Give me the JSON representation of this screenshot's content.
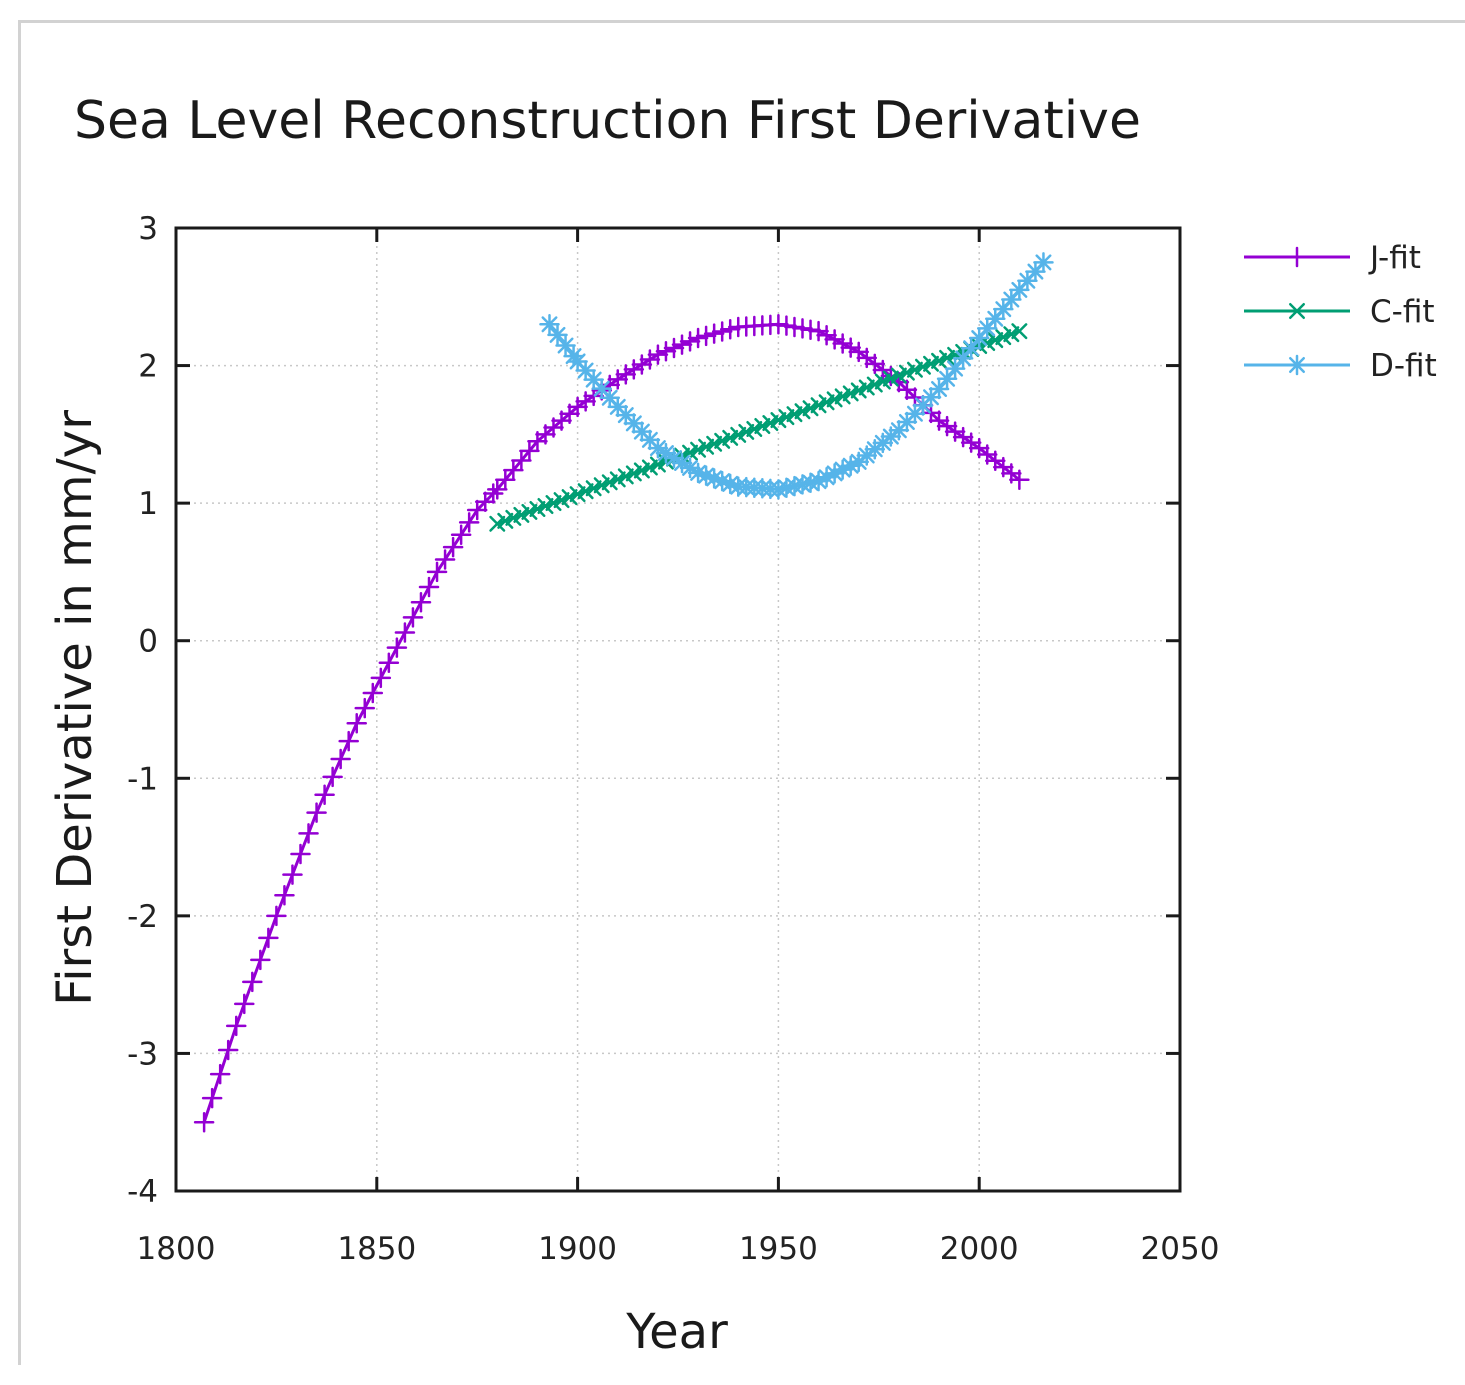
{
  "chart_data": {
    "type": "line",
    "title": "Sea Level Reconstruction First Derivative",
    "xlabel": "Year",
    "ylabel": "First Derivative in mm/yr",
    "xlim": [
      1800,
      2050
    ],
    "ylim": [
      -4,
      3
    ],
    "xticks": [
      1800,
      1850,
      1900,
      1950,
      2000,
      2050
    ],
    "yticks": [
      -4,
      -3,
      -2,
      -1,
      0,
      1,
      2,
      3
    ],
    "grid": true,
    "legend_position": "outside-top-right",
    "series": [
      {
        "name": "J-fit",
        "color": "#9400d3",
        "marker": "+",
        "x": [
          1807,
          1815,
          1825,
          1835,
          1845,
          1855,
          1865,
          1875,
          1880,
          1890,
          1900,
          1910,
          1920,
          1930,
          1940,
          1950,
          1960,
          1970,
          1980,
          1990,
          2000,
          2010
        ],
        "y": [
          -3.5,
          -2.8,
          -2.0,
          -1.25,
          -0.6,
          -0.05,
          0.5,
          0.95,
          1.1,
          1.45,
          1.7,
          1.9,
          2.08,
          2.2,
          2.28,
          2.3,
          2.25,
          2.1,
          1.88,
          1.6,
          1.4,
          1.17
        ]
      },
      {
        "name": "C-fit",
        "color": "#009e73",
        "marker": "x",
        "x": [
          1880,
          2010
        ],
        "y": [
          0.85,
          2.25
        ]
      },
      {
        "name": "D-fit",
        "color": "#56b4e9",
        "marker": "*",
        "x": [
          1893,
          1900,
          1910,
          1920,
          1930,
          1940,
          1950,
          1960,
          1970,
          1980,
          1990,
          2000,
          2010,
          2016
        ],
        "y": [
          2.3,
          2.03,
          1.7,
          1.4,
          1.22,
          1.12,
          1.1,
          1.16,
          1.3,
          1.53,
          1.83,
          2.2,
          2.55,
          2.75
        ]
      }
    ]
  }
}
